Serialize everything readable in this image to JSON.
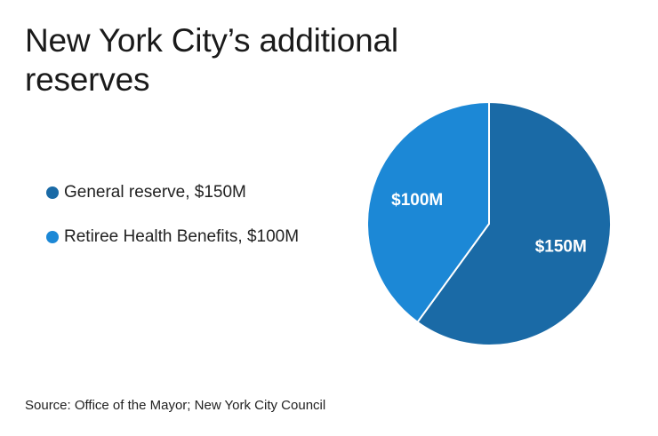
{
  "chart_data": {
    "type": "pie",
    "title": "New York City’s additional reserves",
    "series": [
      {
        "name": "General reserve",
        "value": 150,
        "label": "$150M",
        "legend": "General reserve, $150M",
        "color": "#1a6aa6"
      },
      {
        "name": "Retiree Health Benefits",
        "value": 100,
        "label": "$100M",
        "legend": "Retiree Health Benefits, $100M",
        "color": "#1c88d6"
      }
    ],
    "legend_position": "left",
    "start": "12 o'clock, clockwise"
  },
  "source": "Source: Office of the Mayor; New York City Council"
}
